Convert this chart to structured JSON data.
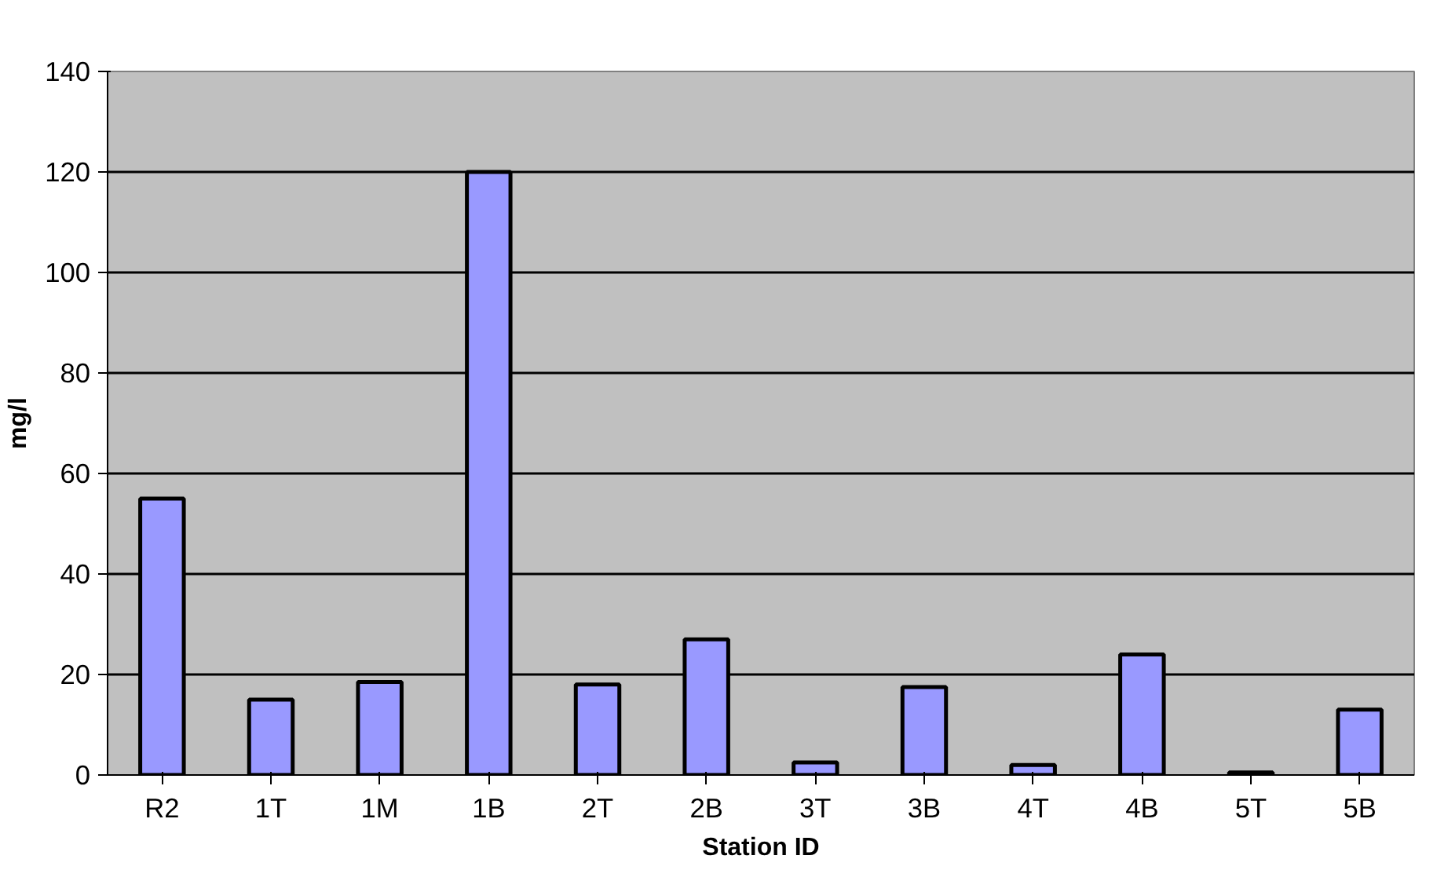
{
  "chart_data": {
    "type": "bar",
    "xlabel": "Station ID",
    "ylabel": "mg/l",
    "categories": [
      "R2",
      "1T",
      "1M",
      "1B",
      "2T",
      "2B",
      "3T",
      "3B",
      "4T",
      "4B",
      "5T",
      "5B"
    ],
    "values": [
      55,
      15,
      18.5,
      120,
      18,
      27,
      2.5,
      17.5,
      2,
      24,
      0.5,
      13
    ],
    "color": "#9999ff",
    "ylim": [
      0,
      140
    ],
    "yticks": [
      0,
      20,
      40,
      60,
      80,
      100,
      120,
      140
    ],
    "grid": "y"
  }
}
